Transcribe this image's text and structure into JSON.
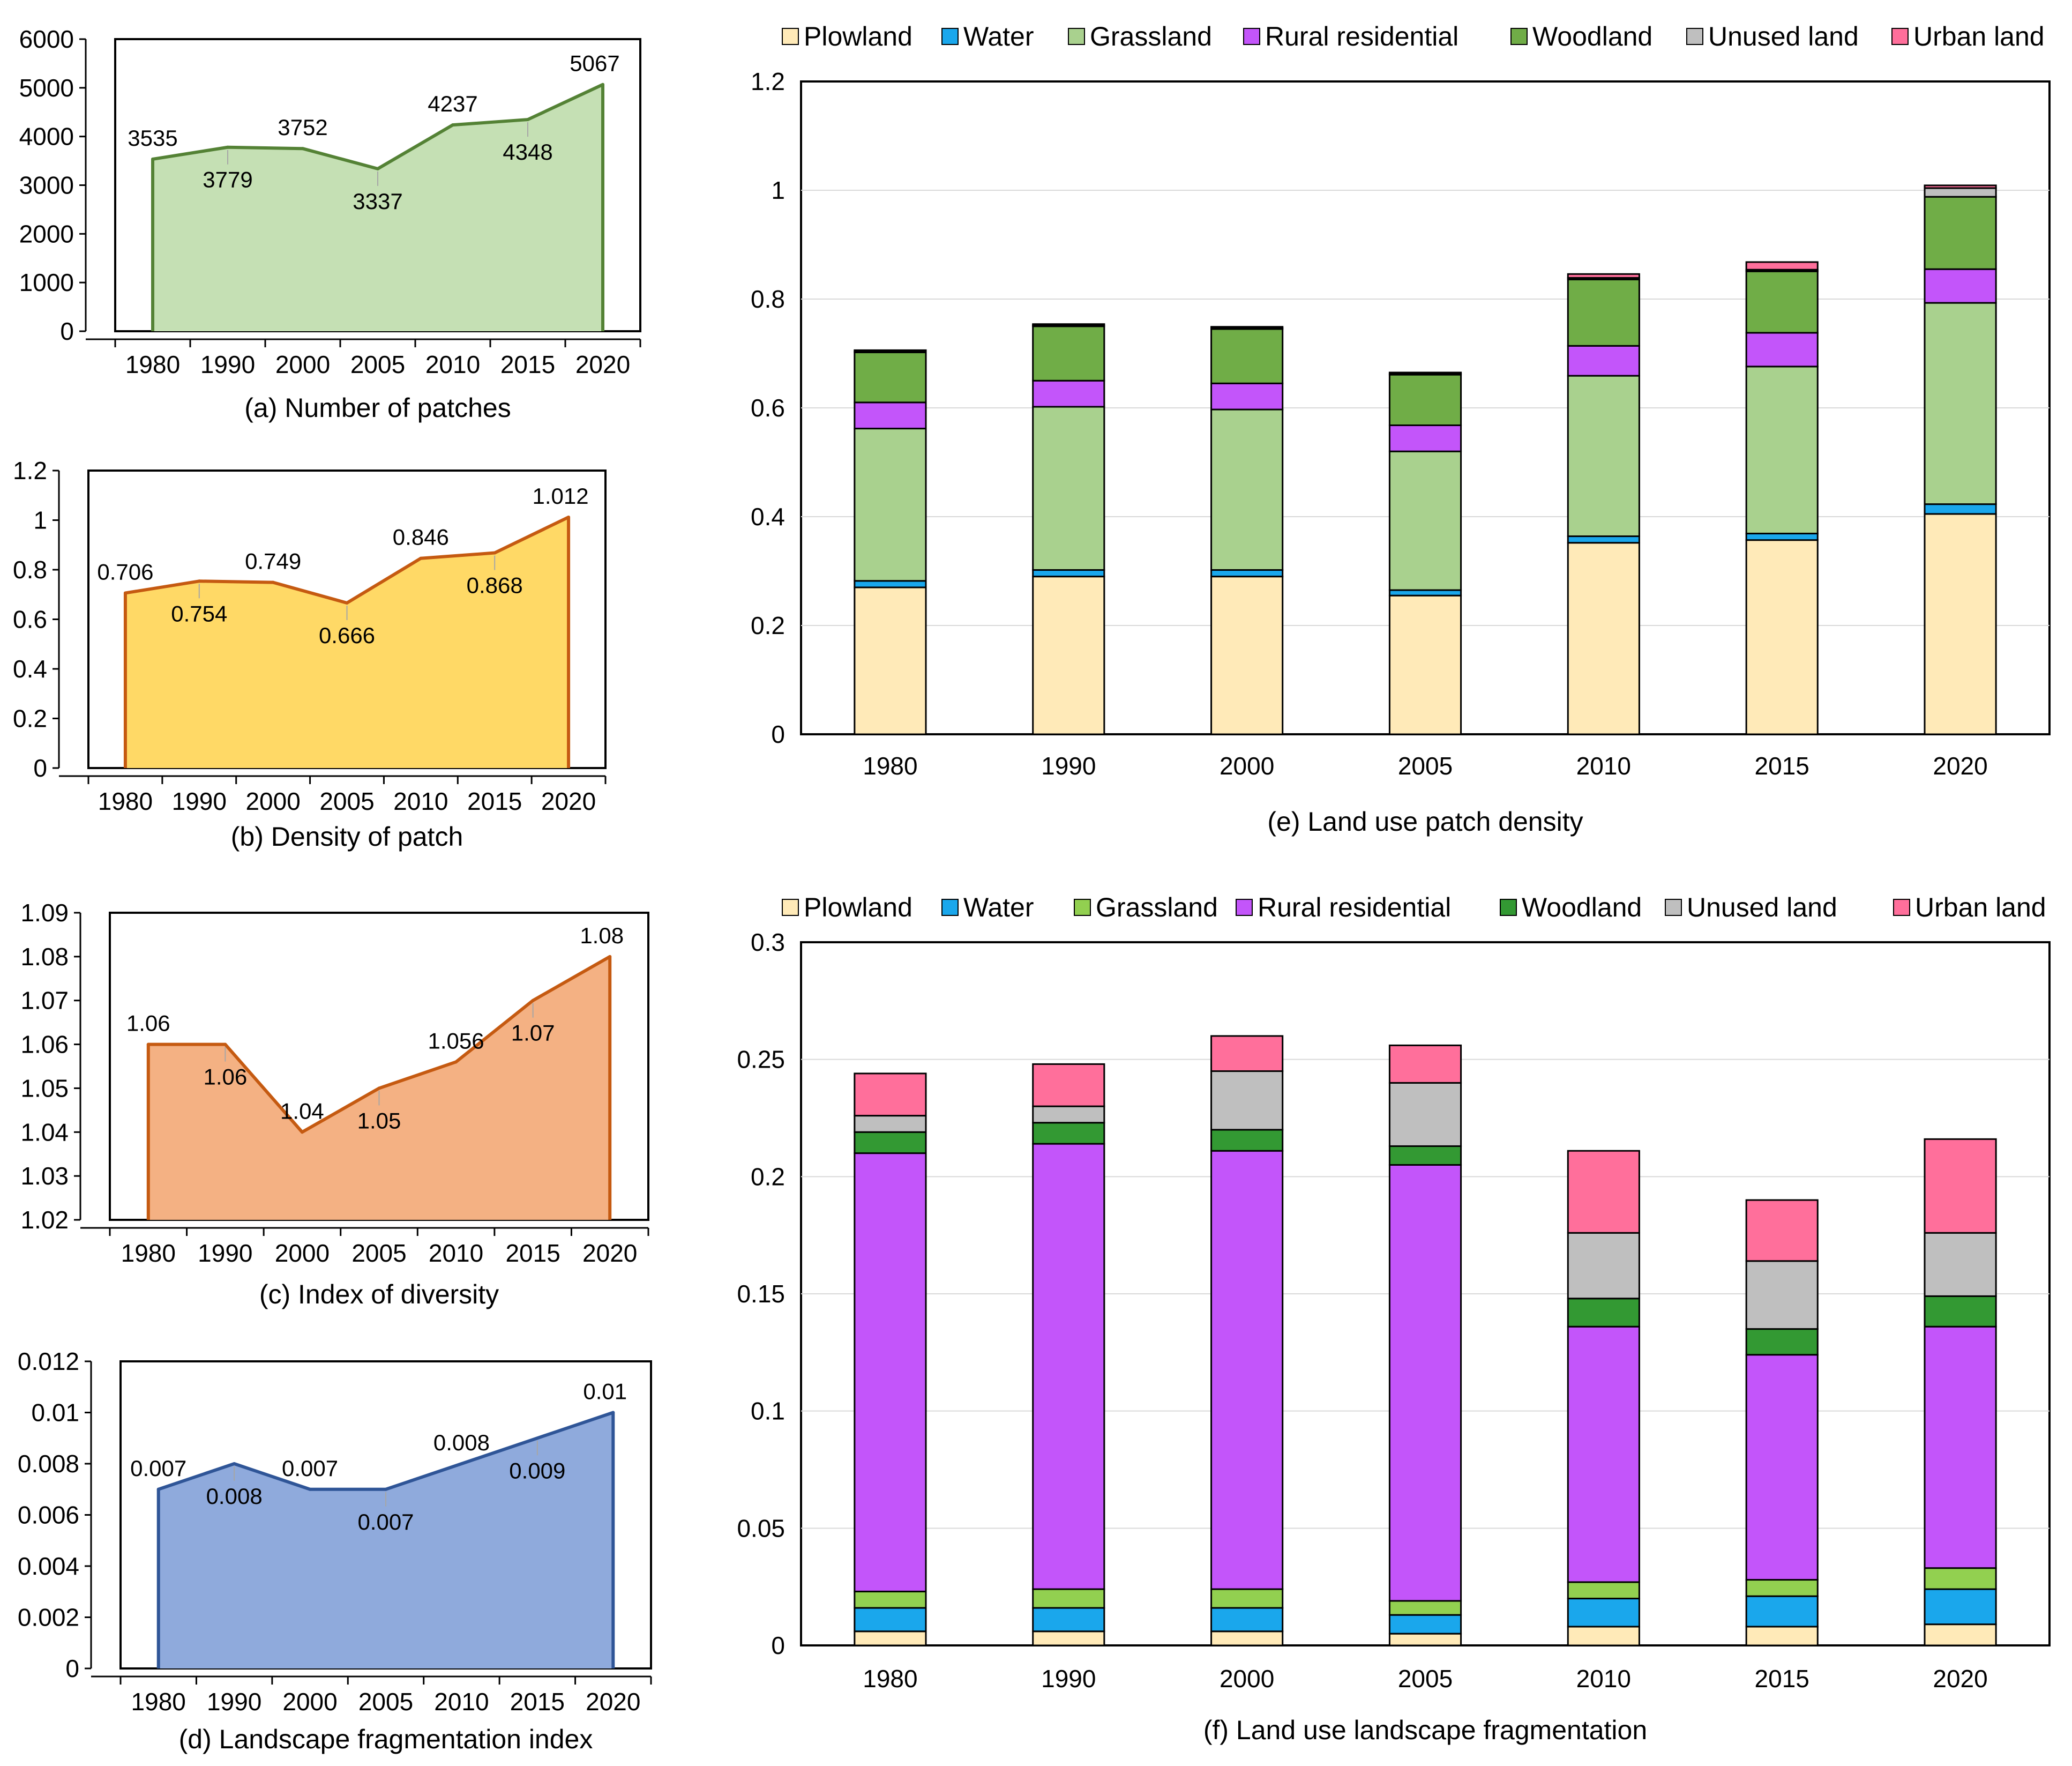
{
  "chart_data": [
    {
      "id": "a",
      "type": "area",
      "title": "(a) Number of patches",
      "xlabel": "",
      "ylabel": "",
      "categories": [
        "1980",
        "1990",
        "2000",
        "2005",
        "2010",
        "2015",
        "2020"
      ],
      "values": [
        3535,
        3779,
        3752,
        3337,
        4237,
        4348,
        5067
      ],
      "labels": [
        "3535",
        "3779",
        "3752",
        "3337",
        "4237",
        "4348",
        "5067"
      ],
      "label_side": [
        "above",
        "below",
        "above",
        "below",
        "above",
        "below",
        "above"
      ],
      "ylim": [
        0,
        6000
      ],
      "yticks": [
        "0",
        "1000",
        "2000",
        "3000",
        "4000",
        "5000",
        "6000"
      ],
      "fill": "#c5e0b4",
      "line": "#548235"
    },
    {
      "id": "b",
      "type": "area",
      "title": "(b)   Density of patch",
      "xlabel": "",
      "ylabel": "",
      "categories": [
        "1980",
        "1990",
        "2000",
        "2005",
        "2010",
        "2015",
        "2020"
      ],
      "values": [
        0.706,
        0.754,
        0.749,
        0.666,
        0.846,
        0.868,
        1.012
      ],
      "labels": [
        "0.706",
        "0.754",
        "0.749",
        "0.666",
        "0.846",
        "0.868",
        "1.012"
      ],
      "label_side": [
        "above",
        "below",
        "above",
        "below",
        "above",
        "below",
        "above"
      ],
      "ylim": [
        0,
        1.2
      ],
      "yticks": [
        "0",
        "0.2",
        "0.4",
        "0.6",
        "0.8",
        "1",
        "1.2"
      ],
      "fill": "#ffd966",
      "line": "#c55a11"
    },
    {
      "id": "c",
      "type": "area",
      "title": "(c) Index of diversity",
      "xlabel": "",
      "ylabel": "",
      "categories": [
        "1980",
        "1990",
        "2000",
        "2005",
        "2010",
        "2015",
        "2020"
      ],
      "values": [
        1.06,
        1.06,
        1.04,
        1.05,
        1.056,
        1.07,
        1.08
      ],
      "labels": [
        "1.06",
        "1.06",
        "1.04",
        "1.05",
        "1.056",
        "1.07",
        "1.08"
      ],
      "label_side": [
        "above",
        "below",
        "above",
        "below",
        "above",
        "below",
        "above"
      ],
      "ylim": [
        1.02,
        1.09
      ],
      "yticks": [
        "1.02",
        "1.03",
        "1.04",
        "1.05",
        "1.06",
        "1.07",
        "1.08",
        "1.09"
      ],
      "fill": "#f4b183",
      "line": "#c55a11"
    },
    {
      "id": "d",
      "type": "area",
      "title": "(d) Landscape fragmentation index",
      "xlabel": "",
      "ylabel": "",
      "categories": [
        "1980",
        "1990",
        "2000",
        "2005",
        "2010",
        "2015",
        "2020"
      ],
      "values": [
        0.007,
        0.008,
        0.007,
        0.007,
        0.008,
        0.009,
        0.01
      ],
      "labels": [
        "0.007",
        "0.008",
        "0.007",
        "0.007",
        "0.008",
        "0.009",
        "0.01"
      ],
      "label_side": [
        "above",
        "below",
        "above",
        "below",
        "above",
        "below",
        "above"
      ],
      "ylim": [
        0,
        0.012
      ],
      "yticks": [
        "0",
        "0.002",
        "0.004",
        "0.006",
        "0.008",
        "0.01",
        "0.012"
      ],
      "fill": "#8faadc",
      "line": "#2f5597"
    },
    {
      "id": "e",
      "type": "bar",
      "stacked": true,
      "title": "(e) Land use patch density",
      "xlabel": "",
      "ylabel": "",
      "categories": [
        "1980",
        "1990",
        "2000",
        "2005",
        "2010",
        "2015",
        "2020"
      ],
      "ylim": [
        0,
        1.2
      ],
      "yticks": [
        "0",
        "0.2",
        "0.4",
        "0.6",
        "0.8",
        "1",
        "1.2"
      ],
      "legend_position": "top",
      "series": [
        {
          "name": "Plowland",
          "color": "#ffeab8",
          "values": [
            0.27,
            0.29,
            0.29,
            0.255,
            0.352,
            0.357,
            0.405
          ]
        },
        {
          "name": "Water",
          "color": "#1aa7ec",
          "values": [
            0.012,
            0.012,
            0.012,
            0.01,
            0.012,
            0.012,
            0.018
          ]
        },
        {
          "name": "Grassland",
          "color": "#a9d18e",
          "values": [
            0.28,
            0.3,
            0.295,
            0.255,
            0.295,
            0.307,
            0.37
          ]
        },
        {
          "name": "Rural residential",
          "color": "#c355fa",
          "values": [
            0.048,
            0.048,
            0.048,
            0.048,
            0.055,
            0.062,
            0.062
          ]
        },
        {
          "name": "Woodland",
          "color": "#70ad47",
          "values": [
            0.092,
            0.1,
            0.1,
            0.093,
            0.122,
            0.113,
            0.133
          ]
        },
        {
          "name": "Unused land",
          "color": "#bfbfbf",
          "values": [
            0.002,
            0.002,
            0.002,
            0.002,
            0.003,
            0.003,
            0.016
          ]
        },
        {
          "name": "Urban land",
          "color": "#ff6f9b",
          "values": [
            0.002,
            0.002,
            0.002,
            0.002,
            0.007,
            0.014,
            0.005
          ]
        }
      ]
    },
    {
      "id": "f",
      "type": "bar",
      "stacked": true,
      "title": "(f) Land use landscape fragmentation",
      "xlabel": "",
      "ylabel": "",
      "categories": [
        "1980",
        "1990",
        "2000",
        "2005",
        "2010",
        "2015",
        "2020"
      ],
      "ylim": [
        0,
        0.3
      ],
      "yticks": [
        "0",
        "0.05",
        "0.1",
        "0.15",
        "0.2",
        "0.25",
        "0.3"
      ],
      "legend_position": "top",
      "series": [
        {
          "name": "Plowland",
          "color": "#ffeab8",
          "values": [
            0.006,
            0.006,
            0.006,
            0.005,
            0.008,
            0.008,
            0.009
          ]
        },
        {
          "name": "Water",
          "color": "#1aa7ec",
          "values": [
            0.01,
            0.01,
            0.01,
            0.008,
            0.012,
            0.013,
            0.015
          ]
        },
        {
          "name": "Grassland",
          "color": "#92d050",
          "values": [
            0.007,
            0.008,
            0.008,
            0.006,
            0.007,
            0.007,
            0.009
          ]
        },
        {
          "name": "Rural residential",
          "color": "#c355fa",
          "values": [
            0.187,
            0.19,
            0.187,
            0.186,
            0.109,
            0.096,
            0.103
          ]
        },
        {
          "name": "Woodland",
          "color": "#339933",
          "values": [
            0.009,
            0.009,
            0.009,
            0.008,
            0.012,
            0.011,
            0.013
          ]
        },
        {
          "name": "Unused land",
          "color": "#bfbfbf",
          "values": [
            0.007,
            0.007,
            0.025,
            0.027,
            0.028,
            0.029,
            0.027
          ]
        },
        {
          "name": "Urban land",
          "color": "#ff6f9b",
          "values": [
            0.018,
            0.018,
            0.015,
            0.016,
            0.035,
            0.026,
            0.04
          ]
        }
      ]
    }
  ]
}
